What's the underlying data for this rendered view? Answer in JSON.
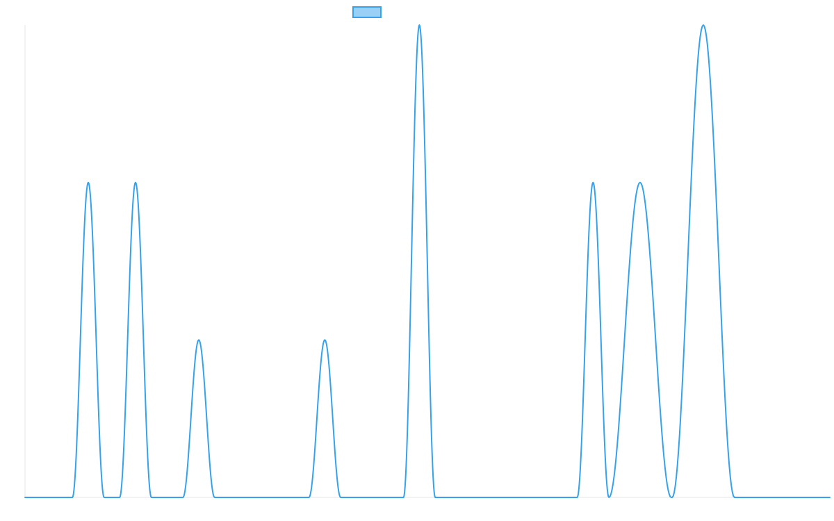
{
  "chart_data": {
    "type": "line",
    "x_range": [
      0,
      1
    ],
    "ylim": [
      0,
      3
    ],
    "grid": false,
    "legend": {
      "placement": "top-center",
      "entries": [
        {
          "color": "#36a2eb",
          "fill": "#9ad0f5"
        }
      ]
    },
    "series": [
      {
        "color": "#36a2eb",
        "peaks": [
          {
            "center": 0.0786,
            "height": 2,
            "halfwidth": 0.0197
          },
          {
            "center": 0.1373,
            "height": 2,
            "halfwidth": 0.0197
          },
          {
            "center": 0.2159,
            "height": 1,
            "halfwidth": 0.0197
          },
          {
            "center": 0.3725,
            "height": 1,
            "halfwidth": 0.0197
          },
          {
            "center": 0.49,
            "height": 3,
            "halfwidth": 0.0197
          },
          {
            "center": 0.7058,
            "height": 2,
            "halfwidth": 0.0197
          },
          {
            "center": 0.7642,
            "height": 2,
            "halfwidth": 0.0387
          },
          {
            "center": 0.8428,
            "height": 3,
            "halfwidth": 0.0387
          }
        ]
      }
    ]
  }
}
